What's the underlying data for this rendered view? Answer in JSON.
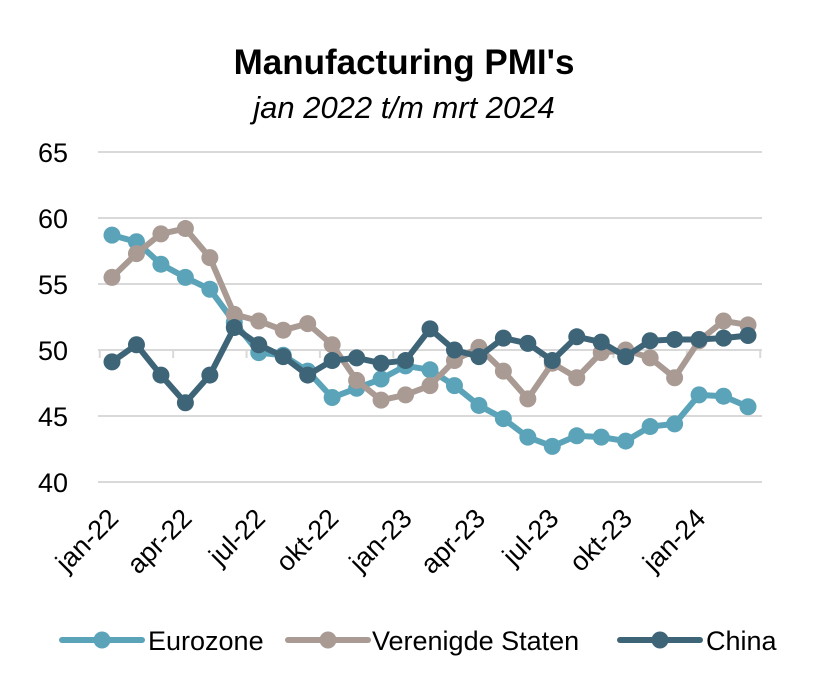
{
  "chart_data": {
    "type": "line",
    "title": "Manufacturing PMI's",
    "subtitle": "jan 2022 t/m mrt 2024",
    "ylim": [
      40,
      65
    ],
    "yticks": [
      40,
      45,
      50,
      55,
      60,
      65
    ],
    "grid": true,
    "legend_position": "bottom",
    "x": [
      "jan-22",
      "feb-22",
      "mrt-22",
      "apr-22",
      "mei-22",
      "jun-22",
      "jul-22",
      "aug-22",
      "sep-22",
      "okt-22",
      "nov-22",
      "dec-22",
      "jan-23",
      "feb-23",
      "mrt-23",
      "apr-23",
      "mei-23",
      "jun-23",
      "jul-23",
      "aug-23",
      "sep-23",
      "okt-23",
      "nov-23",
      "dec-23",
      "jan-24",
      "feb-24",
      "mrt-24"
    ],
    "x_tick_labels": [
      "jan-22",
      "apr-22",
      "jul-22",
      "okt-22",
      "jan-23",
      "apr-23",
      "jul-23",
      "okt-23",
      "jan-24"
    ],
    "x_tick_indices": [
      0,
      3,
      6,
      9,
      12,
      15,
      18,
      21,
      24
    ],
    "series": [
      {
        "name": "Eurozone",
        "color": "#5ba3b8",
        "values": [
          58.7,
          58.2,
          56.5,
          55.5,
          54.6,
          52.1,
          49.8,
          49.6,
          48.4,
          46.4,
          47.1,
          47.8,
          48.8,
          48.5,
          47.3,
          45.8,
          44.8,
          43.4,
          42.7,
          43.5,
          43.4,
          43.1,
          44.2,
          44.4,
          46.6,
          46.5,
          45.7
        ]
      },
      {
        "name": "Verenigde Staten",
        "color": "#a99a93",
        "values": [
          55.5,
          57.3,
          58.8,
          59.2,
          57.0,
          52.7,
          52.2,
          51.5,
          52.0,
          50.4,
          47.7,
          46.2,
          46.6,
          47.3,
          49.2,
          50.2,
          48.4,
          46.3,
          49.0,
          47.9,
          49.8,
          50.0,
          49.4,
          47.9,
          50.7,
          52.2,
          51.9
        ]
      },
      {
        "name": "China",
        "color": "#3e6478",
        "values": [
          49.1,
          50.4,
          48.1,
          46.0,
          48.1,
          51.7,
          50.4,
          49.5,
          48.1,
          49.2,
          49.4,
          49.0,
          49.2,
          51.6,
          50.0,
          49.5,
          50.9,
          50.5,
          49.2,
          51.0,
          50.6,
          49.5,
          50.7,
          50.8,
          50.8,
          50.9,
          51.1
        ]
      }
    ]
  }
}
